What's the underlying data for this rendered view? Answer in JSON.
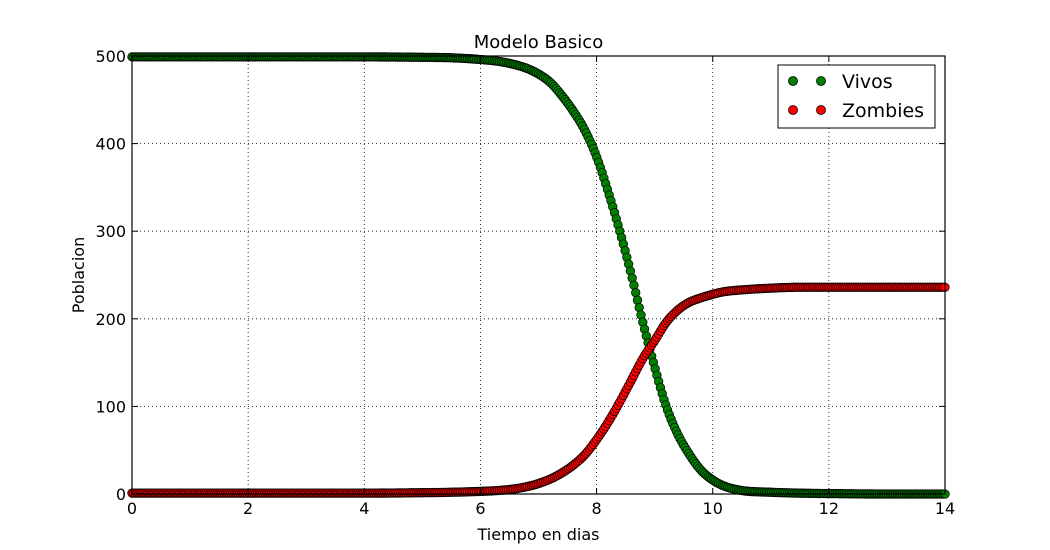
{
  "chart_data": {
    "type": "scatter",
    "title": "Modelo Basico",
    "xlabel": "Tiempo en dias",
    "ylabel": "Poblacion",
    "xlim": [
      0,
      14
    ],
    "ylim": [
      0,
      500
    ],
    "xticks": [
      0,
      2,
      4,
      6,
      8,
      10,
      12,
      14
    ],
    "yticks": [
      0,
      100,
      200,
      300,
      400,
      500
    ],
    "grid": true,
    "legend_position": "top-right",
    "series": [
      {
        "name": "Vivos",
        "color": "#007f00",
        "x": [
          0,
          1,
          2,
          3,
          4,
          5,
          5.5,
          6,
          6.3,
          6.6,
          6.9,
          7.2,
          7.4,
          7.6,
          7.8,
          8.0,
          8.2,
          8.4,
          8.6,
          8.8,
          9.0,
          9.2,
          9.4,
          9.6,
          9.8,
          10.0,
          10.2,
          10.5,
          11.0,
          11.5,
          12.0,
          13.0,
          14.0
        ],
        "y": [
          499,
          499,
          499,
          499,
          499,
          498.5,
          498,
          496,
          494,
          490,
          483,
          470,
          455,
          437,
          415,
          385,
          345,
          300,
          250,
          195,
          145,
          100,
          68,
          45,
          27,
          16,
          9,
          4,
          2,
          1,
          0.5,
          0,
          0
        ]
      },
      {
        "name": "Zombies",
        "color": "#ff0000",
        "x": [
          0,
          1,
          2,
          3,
          4,
          5,
          5.5,
          6,
          6.3,
          6.6,
          6.9,
          7.2,
          7.4,
          7.6,
          7.8,
          8.0,
          8.2,
          8.4,
          8.6,
          8.8,
          9.0,
          9.2,
          9.4,
          9.6,
          9.8,
          10.0,
          10.2,
          10.5,
          11.0,
          11.5,
          12.0,
          13.0,
          14.0
        ],
        "y": [
          1,
          1,
          1,
          1,
          1,
          1.5,
          2,
          3,
          4,
          6,
          10,
          17,
          24,
          33,
          45,
          62,
          82,
          105,
          130,
          155,
          175,
          196,
          210,
          219,
          224,
          228,
          231,
          233,
          235,
          236,
          236,
          236,
          236
        ]
      }
    ]
  }
}
